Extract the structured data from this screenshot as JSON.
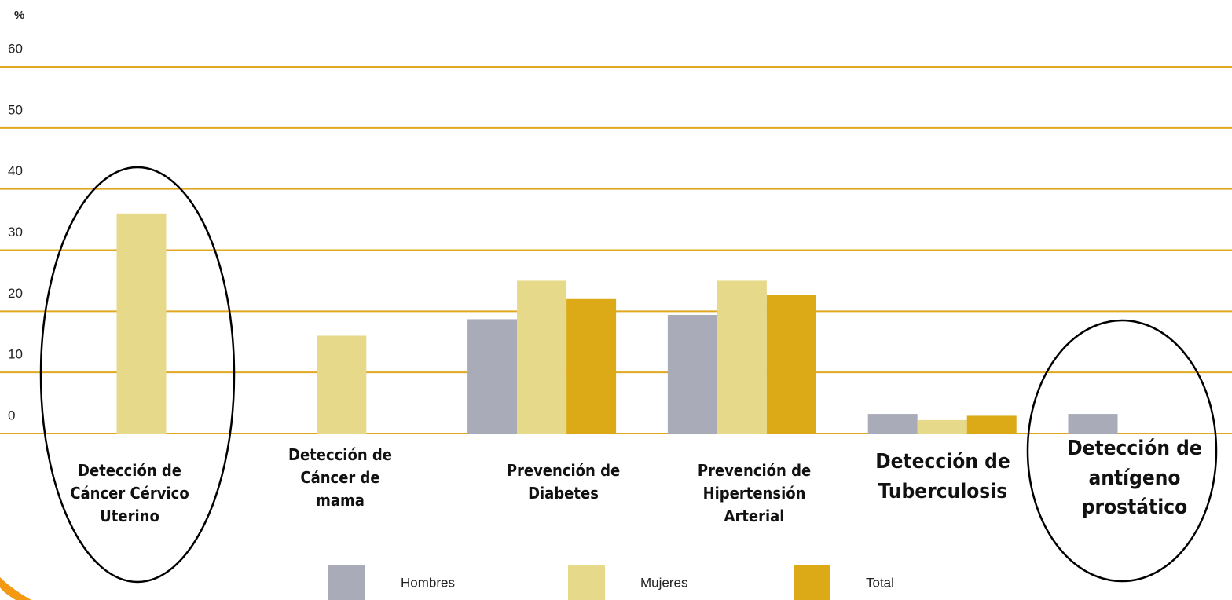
{
  "chart_data": {
    "type": "bar",
    "y_axis_label": "%",
    "categories": [
      "Detección de Cáncer Cérvico Uterino",
      "Detección de Cáncer de mama",
      "Prevención de Diabetes",
      "Prevención de Hipertensión Arterial",
      "Detección de Tuberculosis",
      "Detección de antígeno prostático"
    ],
    "series": [
      {
        "name": "Hombres",
        "color": "#a9abb8",
        "values": [
          null,
          null,
          18.7,
          19.4,
          3.2,
          3.2
        ]
      },
      {
        "name": "Mujeres",
        "color": "#e6d98a",
        "values": [
          36,
          16,
          25,
          25,
          2.2,
          null
        ]
      },
      {
        "name": "Total",
        "color": "#dcaa17",
        "values": [
          null,
          null,
          22,
          22.7,
          2.9,
          null
        ]
      }
    ],
    "ylim": [
      0,
      60
    ],
    "yticks": [
      0,
      10,
      20,
      30,
      40,
      50,
      60
    ],
    "grid": true,
    "grid_color": "#e0a820",
    "legend": "bottom"
  }
}
